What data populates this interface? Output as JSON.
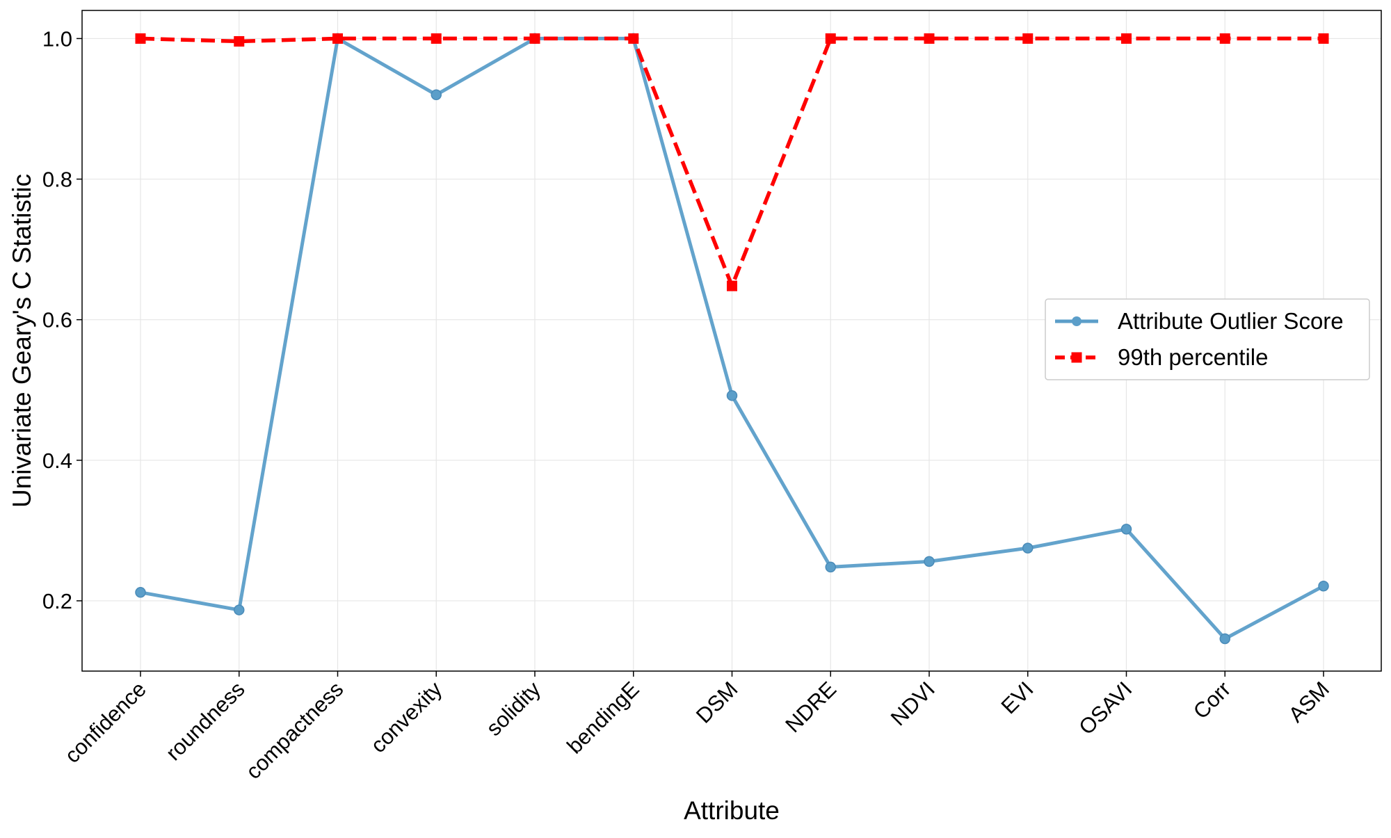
{
  "chart_data": {
    "type": "line",
    "title": "",
    "xlabel": "Attribute",
    "ylabel": "Univariate Geary's C Statistic",
    "categories": [
      "confidence",
      "roundness",
      "compactness",
      "convexity",
      "solidity",
      "bendingE",
      "DSM",
      "NDRE",
      "NDVI",
      "EVI",
      "OSAVI",
      "Corr",
      "ASM"
    ],
    "ylim": [
      0.1,
      1.04
    ],
    "yticks": [
      0.2,
      0.4,
      0.6,
      0.8,
      1.0
    ],
    "ytick_labels": [
      "0.2",
      "0.4",
      "0.6",
      "0.8",
      "1.0"
    ],
    "grid": true,
    "legend_position": "center-right",
    "series": [
      {
        "name": "Attribute Outlier Score",
        "color": "#5b9ec9",
        "marker": "circle",
        "line_style": "solid",
        "values": [
          0.212,
          0.187,
          1.0,
          0.92,
          1.0,
          1.0,
          0.492,
          0.248,
          0.256,
          0.275,
          0.302,
          0.146,
          0.221
        ]
      },
      {
        "name": "99th percentile",
        "color": "#ff0000",
        "marker": "square",
        "line_style": "dashed",
        "values": [
          1.0,
          0.996,
          1.0,
          1.0,
          1.0,
          1.0,
          0.648,
          1.0,
          1.0,
          1.0,
          1.0,
          1.0,
          1.0
        ]
      }
    ]
  }
}
